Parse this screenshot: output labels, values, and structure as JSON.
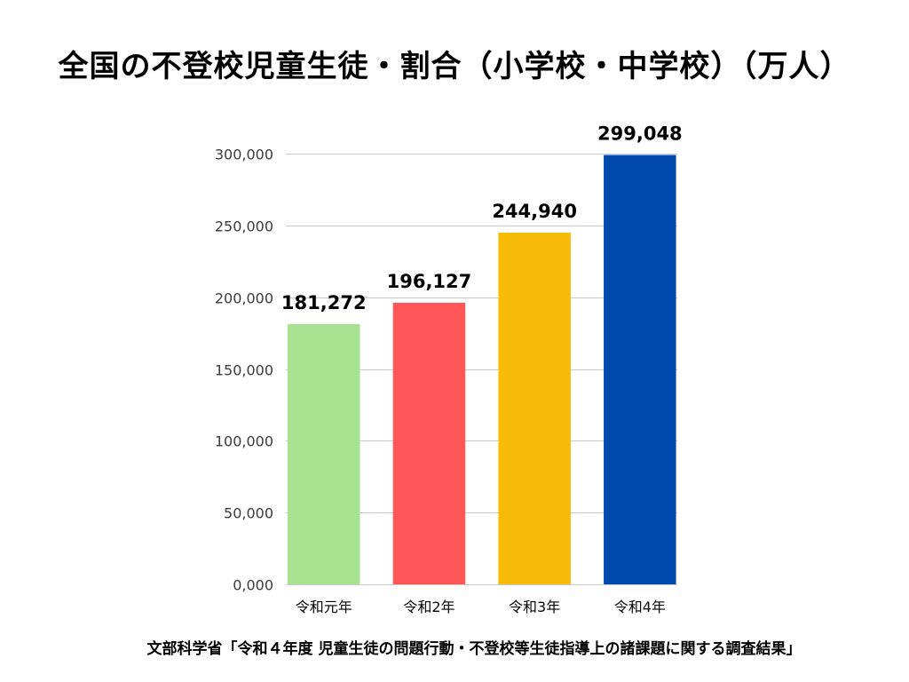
{
  "source": "文部科学省「令和４年度 児童生徒の問題行動・不登校等生徒指導上の諸課題に関する調査結果」",
  "chart_data": {
    "type": "bar",
    "title": "全国の不登校児童生徒・割合（小学校・中学校）（万人）",
    "categories": [
      "令和元年",
      "令和2年",
      "令和3年",
      "令和4年"
    ],
    "values": [
      181272,
      196127,
      244940,
      299048
    ],
    "value_labels": [
      "181,272",
      "196,127",
      "244,940",
      "299,048"
    ],
    "bar_colors": [
      "#a6e28f",
      "#ff5757",
      "#f7bb06",
      "#004aad"
    ],
    "yticks": [
      0,
      50000,
      100000,
      150000,
      200000,
      250000,
      300000
    ],
    "ytick_labels": [
      "0,000",
      "50,000",
      "100,000",
      "150,000",
      "200,000",
      "250,000",
      "300,000"
    ],
    "ylim": [
      0,
      300000
    ],
    "grid": true
  }
}
